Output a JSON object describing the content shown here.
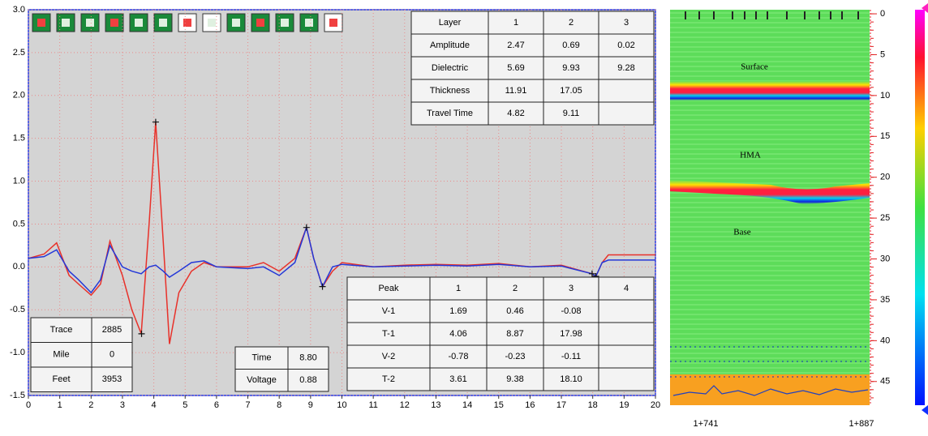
{
  "chart_data": {
    "type": "line",
    "x": [
      0,
      0.5,
      0.9,
      1.3,
      1.6,
      2,
      2.3,
      2.6,
      3,
      3.3,
      3.6,
      3.85,
      4.06,
      4.3,
      4.5,
      4.8,
      5.2,
      5.6,
      6,
      7,
      7.5,
      8,
      8.5,
      8.87,
      9.1,
      9.38,
      9.7,
      10,
      11,
      12,
      13,
      14,
      15,
      16,
      17,
      17.98,
      18.1,
      18.3,
      18.5,
      20
    ],
    "series": [
      {
        "color": "#e8312a",
        "values": [
          0.1,
          0.15,
          0.28,
          -0.1,
          -0.2,
          -0.33,
          -0.2,
          0.3,
          -0.1,
          -0.5,
          -0.78,
          0.5,
          1.69,
          0.3,
          -0.9,
          -0.3,
          -0.05,
          0.05,
          0,
          0,
          0.05,
          -0.05,
          0.1,
          0.46,
          0.1,
          -0.23,
          -0.05,
          0.05,
          0,
          0.02,
          0.03,
          0.02,
          0.04,
          0,
          0.02,
          -0.08,
          -0.11,
          0.05,
          0.14,
          0.14
        ]
      },
      {
        "color": "#2438d8",
        "values": [
          0.1,
          0.12,
          0.2,
          -0.05,
          -0.15,
          -0.3,
          -0.15,
          0.25,
          0,
          -0.05,
          -0.08,
          0,
          0.02,
          -0.05,
          -0.12,
          -0.05,
          0.05,
          0.07,
          0,
          -0.02,
          0,
          -0.1,
          0.05,
          0.46,
          0.1,
          -0.23,
          0,
          0.03,
          0,
          0.01,
          0.02,
          0.01,
          0.03,
          0,
          0.01,
          -0.08,
          -0.11,
          0.05,
          0.08,
          0.08
        ]
      }
    ],
    "xlim": [
      0,
      20
    ],
    "ylim": [
      -1.5,
      3.0
    ],
    "xticks": [
      0,
      1,
      2,
      3,
      4,
      5,
      6,
      7,
      8,
      9,
      10,
      11,
      12,
      13,
      14,
      15,
      16,
      17,
      18,
      19,
      20
    ],
    "yticks": [
      -1.5,
      {
        "value": -1,
        "label": "-1.0"
      },
      -0.5,
      {
        "value": 0,
        "label": "0.0"
      },
      0.5,
      {
        "value": 1,
        "label": "1.0"
      },
      1.5,
      {
        "value": 2,
        "label": "2.0"
      },
      2.5,
      {
        "value": 3,
        "label": "3.0"
      }
    ],
    "grid": true
  },
  "layer_table": {
    "rows": [
      [
        "Layer",
        "1",
        "2",
        "3"
      ],
      [
        "Amplitude",
        "2.47",
        "0.69",
        "0.02"
      ],
      [
        "Dielectric",
        "5.69",
        "9.93",
        "9.28"
      ],
      [
        "Thickness",
        "11.91",
        "17.05"
      ],
      [
        "Travel Time",
        "4.82",
        "9.11"
      ]
    ]
  },
  "peak_table": {
    "rows": [
      [
        "Peak",
        "1",
        "2",
        "3",
        "4"
      ],
      [
        "V-1",
        "1.69",
        "0.46",
        "-0.08"
      ],
      [
        "T-1",
        "4.06",
        "8.87",
        "17.98"
      ],
      [
        "V-2",
        "-0.78",
        "-0.23",
        "-0.11"
      ],
      [
        "T-2",
        "3.61",
        "9.38",
        "18.10"
      ]
    ]
  },
  "trace_table": {
    "rows": [
      [
        "Trace",
        "2885"
      ],
      [
        "Mile",
        "0"
      ],
      [
        "Feet",
        "3953"
      ]
    ]
  },
  "cursor_table": {
    "rows": [
      [
        "Time",
        "8.80"
      ],
      [
        "Voltage",
        "0.88"
      ]
    ]
  },
  "radargram": {
    "labels": [
      "Surface",
      "HMA",
      "Base"
    ],
    "depth_lim": [
      -0.5,
      47.9
    ],
    "depth_ticks": [
      0,
      5,
      10,
      15,
      20,
      25,
      30,
      35,
      40,
      45
    ],
    "distance_labels": [
      "1+741",
      "1+887"
    ]
  }
}
